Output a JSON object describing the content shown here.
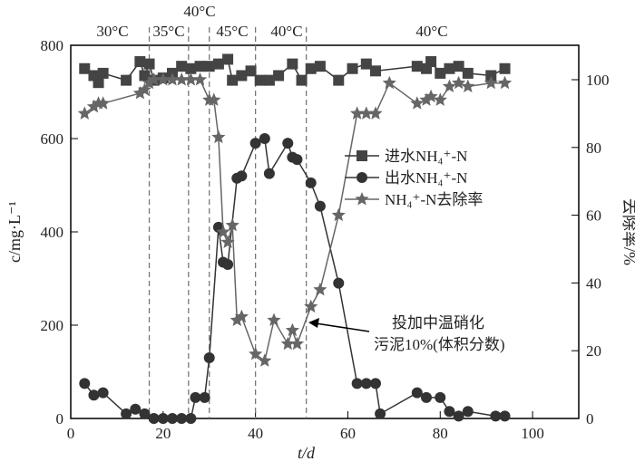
{
  "chart_data": {
    "type": "line",
    "xlabel": "t/d",
    "ylabel": "c/mg·L⁻¹",
    "y2label": "去除率/%",
    "xlim": [
      0,
      110
    ],
    "ylim": [
      0,
      800
    ],
    "y2lim": [
      0,
      100
    ],
    "xticks": [
      0,
      20,
      40,
      60,
      80,
      100
    ],
    "yticks": [
      0,
      200,
      400,
      600,
      800
    ],
    "y2ticks": [
      0,
      20,
      40,
      60,
      80,
      100
    ],
    "phase_boundaries": [
      17,
      25.5,
      30,
      40,
      51
    ],
    "temperature_labels": [
      "30°C",
      "35°C",
      "40°C",
      "45°C",
      "40°C",
      "40°C"
    ],
    "series": [
      {
        "name": "进水NH₄⁺-N",
        "axis": "left",
        "marker": "square",
        "x": [
          3,
          5,
          6,
          7,
          12,
          15,
          16,
          17,
          18,
          20,
          22,
          24,
          26,
          28,
          30,
          32,
          34,
          35,
          37,
          39,
          41,
          43,
          45,
          48,
          50,
          52,
          54,
          58,
          61,
          64,
          66,
          75,
          77,
          78,
          80,
          82,
          84,
          86,
          91,
          94
        ],
        "y": [
          750,
          735,
          720,
          740,
          725,
          765,
          735,
          760,
          725,
          730,
          740,
          755,
          750,
          755,
          755,
          760,
          770,
          725,
          735,
          745,
          725,
          725,
          735,
          760,
          725,
          750,
          755,
          725,
          750,
          760,
          745,
          755,
          750,
          765,
          740,
          750,
          755,
          740,
          735,
          750
        ]
      },
      {
        "name": "出水NH₄⁺-N",
        "axis": "left",
        "marker": "circle",
        "x": [
          3,
          5,
          7,
          12,
          14,
          16,
          18,
          20,
          22,
          24,
          26,
          27,
          29,
          30,
          32,
          33,
          34,
          36,
          37,
          40,
          42,
          43,
          47,
          48,
          49,
          52,
          54,
          58,
          62,
          64,
          66,
          67,
          75,
          77,
          80,
          82,
          84,
          86,
          92,
          94
        ],
        "y": [
          75,
          50,
          55,
          10,
          20,
          10,
          0,
          0,
          0,
          0,
          0,
          45,
          45,
          130,
          410,
          335,
          330,
          515,
          520,
          590,
          600,
          525,
          590,
          560,
          555,
          505,
          455,
          290,
          75,
          75,
          75,
          10,
          55,
          45,
          45,
          15,
          5,
          15,
          5,
          5
        ]
      },
      {
        "name": "NH₄⁺-N去除率",
        "axis": "right",
        "marker": "star",
        "x": [
          3,
          5,
          6,
          7,
          15,
          16,
          17,
          18,
          20,
          22,
          24,
          26,
          28,
          30,
          31,
          32,
          33,
          34,
          35,
          36,
          37,
          40,
          42,
          44,
          47,
          48,
          49,
          52,
          54,
          58,
          62,
          64,
          66,
          69,
          75,
          77,
          78,
          80,
          82,
          84,
          86,
          91,
          94
        ],
        "y": [
          90,
          92,
          93,
          93,
          96,
          97,
          99,
          100,
          100,
          100,
          100,
          100,
          100,
          94,
          94,
          83,
          55,
          52,
          57,
          29,
          30,
          19,
          17,
          29,
          22,
          26,
          22,
          33,
          38,
          60,
          90,
          90,
          90,
          99,
          93,
          94,
          95,
          94,
          98,
          99,
          98,
          99,
          99
        ]
      }
    ],
    "legend": "center-right",
    "annotation": [
      "投加中温硝化",
      "污泥10%(体积分数)"
    ]
  }
}
